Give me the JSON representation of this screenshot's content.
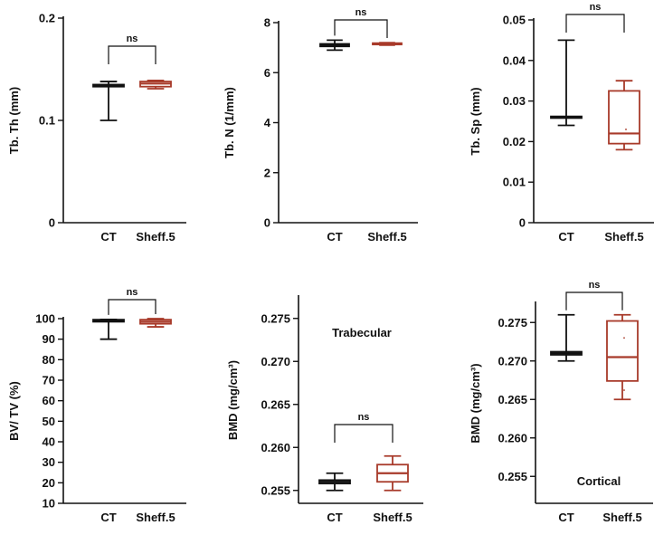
{
  "colors": {
    "CT": "#111111",
    "Sheff.5": "#a83a2a",
    "axis": "#111111"
  },
  "chart_data": [
    {
      "type": "box",
      "categories": [
        "CT",
        "Sheff.5"
      ],
      "ylabel": "Tb. Th (mm)",
      "ylim": [
        0,
        0.2
      ],
      "yticks": [
        0,
        0.1,
        0.2
      ],
      "ytick_labels": [
        "0",
        "0.1",
        "0.2"
      ],
      "significance": "ns",
      "annotation": "",
      "series": [
        {
          "name": "CT",
          "min": 0.1,
          "q1": 0.133,
          "median": 0.134,
          "q3": 0.135,
          "max": 0.138,
          "points": []
        },
        {
          "name": "Sheff.5",
          "min": 0.131,
          "q1": 0.133,
          "median": 0.136,
          "q3": 0.138,
          "max": 0.139,
          "points": []
        }
      ]
    },
    {
      "type": "box",
      "categories": [
        "CT",
        "Sheff.5"
      ],
      "ylabel": "Tb. N (1/mm)",
      "ylim": [
        0,
        8
      ],
      "yticks": [
        0,
        2,
        4,
        6,
        8
      ],
      "ytick_labels": [
        "0",
        "2",
        "4",
        "6",
        "8"
      ],
      "significance": "ns",
      "annotation": "",
      "series": [
        {
          "name": "CT",
          "min": 6.9,
          "q1": 7.05,
          "median": 7.1,
          "q3": 7.15,
          "max": 7.3,
          "points": []
        },
        {
          "name": "Sheff.5",
          "min": 7.1,
          "q1": 7.13,
          "median": 7.15,
          "q3": 7.18,
          "max": 7.2,
          "points": []
        }
      ]
    },
    {
      "type": "box",
      "categories": [
        "CT",
        "Sheff.5"
      ],
      "ylabel": "Tb. Sp (mm)",
      "ylim": [
        0,
        0.05
      ],
      "yticks": [
        0,
        0.01,
        0.02,
        0.03,
        0.04,
        0.05
      ],
      "ytick_labels": [
        "0",
        "0.01",
        "0.02",
        "0.03",
        "0.04",
        "0.05"
      ],
      "significance": "ns",
      "annotation": "",
      "series": [
        {
          "name": "CT",
          "min": 0.024,
          "q1": 0.0258,
          "median": 0.026,
          "q3": 0.0262,
          "max": 0.045,
          "points": []
        },
        {
          "name": "Sheff.5",
          "min": 0.018,
          "q1": 0.0195,
          "median": 0.022,
          "q3": 0.0325,
          "max": 0.035,
          "points": [
            0.023
          ]
        }
      ]
    },
    {
      "type": "box",
      "categories": [
        "CT",
        "Sheff.5"
      ],
      "ylabel": "BV/ TV (%)",
      "ylim": [
        10,
        100
      ],
      "yticks": [
        10,
        20,
        30,
        40,
        50,
        60,
        70,
        80,
        90,
        100
      ],
      "ytick_labels": [
        "10",
        "20",
        "30",
        "40",
        "50",
        "60",
        "70",
        "80",
        "90",
        "100"
      ],
      "significance": "ns",
      "annotation": "",
      "series": [
        {
          "name": "CT",
          "min": 90,
          "q1": 98.5,
          "median": 99,
          "q3": 99.5,
          "max": 99.6,
          "points": []
        },
        {
          "name": "Sheff.5",
          "min": 96,
          "q1": 97.5,
          "median": 98.5,
          "q3": 99.5,
          "max": 100,
          "points": []
        }
      ]
    },
    {
      "type": "box",
      "categories": [
        "CT",
        "Sheff.5"
      ],
      "ylabel": "BMD (mg/cm³)",
      "ylim": [
        0.2535,
        0.2775
      ],
      "yticks": [
        0.255,
        0.26,
        0.265,
        0.27,
        0.275
      ],
      "ytick_labels": [
        "0.255",
        "0.260",
        "0.265",
        "0.270",
        "0.275"
      ],
      "significance": "ns",
      "annotation": "Trabecular",
      "series": [
        {
          "name": "CT",
          "min": 0.255,
          "q1": 0.2558,
          "median": 0.256,
          "q3": 0.2562,
          "max": 0.257,
          "points": []
        },
        {
          "name": "Sheff.5",
          "min": 0.255,
          "q1": 0.256,
          "median": 0.257,
          "q3": 0.258,
          "max": 0.259,
          "points": []
        }
      ]
    },
    {
      "type": "box",
      "categories": [
        "CT",
        "Sheff.5"
      ],
      "ylabel": "BMD (mg/cm³)",
      "ylim": [
        0.2515,
        0.2775
      ],
      "yticks": [
        0.255,
        0.26,
        0.265,
        0.27,
        0.275
      ],
      "ytick_labels": [
        "0.255",
        "0.260",
        "0.265",
        "0.270",
        "0.275"
      ],
      "significance": "ns",
      "annotation": "Cortical",
      "series": [
        {
          "name": "CT",
          "min": 0.27,
          "q1": 0.2708,
          "median": 0.271,
          "q3": 0.2712,
          "max": 0.276,
          "points": []
        },
        {
          "name": "Sheff.5",
          "min": 0.265,
          "q1": 0.2674,
          "median": 0.2705,
          "q3": 0.2752,
          "max": 0.276,
          "points": [
            0.273,
            0.2662
          ]
        }
      ]
    }
  ]
}
